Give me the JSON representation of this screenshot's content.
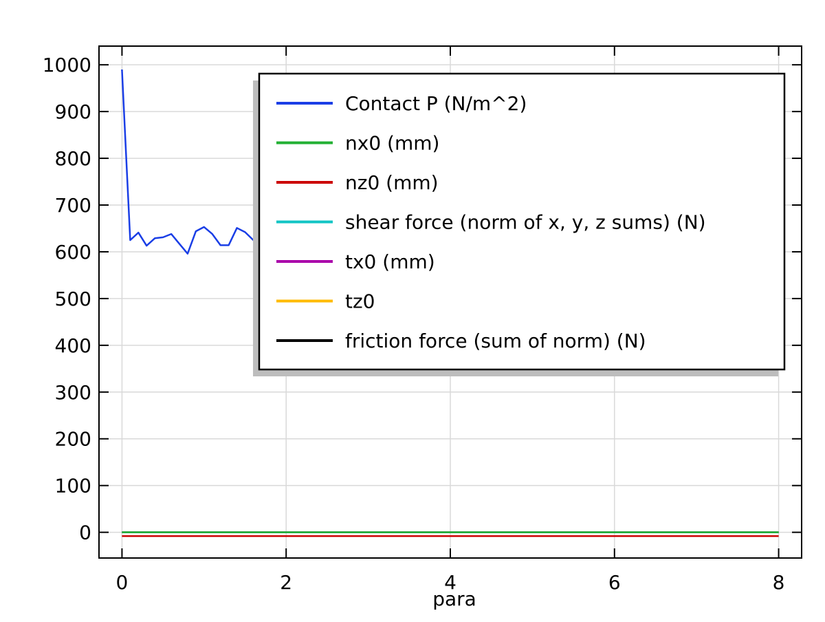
{
  "chart_data": {
    "type": "line",
    "title": "",
    "xlabel": "para",
    "ylabel": "",
    "xlim": [
      -0.28,
      8.28
    ],
    "ylim": [
      -55,
      1040
    ],
    "grid": true,
    "legend_position": "top-right",
    "x_ticks": [
      0,
      2,
      4,
      6,
      8
    ],
    "y_ticks": [
      0,
      100,
      200,
      300,
      400,
      500,
      600,
      700,
      800,
      900,
      1000
    ],
    "series": [
      {
        "name": "Contact P (N/m^2)",
        "color": "#1a3ee6",
        "x": [
          0,
          0.1,
          0.2,
          0.3,
          0.4,
          0.5,
          0.6,
          0.7,
          0.8,
          0.9,
          1.0,
          1.1,
          1.2,
          1.3,
          1.4,
          1.5,
          1.6,
          8.0
        ],
        "y": [
          990,
          625,
          641,
          613,
          629,
          631,
          638,
          617,
          596,
          644,
          653,
          638,
          614,
          614,
          651,
          642,
          625,
          658
        ]
      },
      {
        "name": "nx0 (mm)",
        "color": "#22b033",
        "x": [
          0,
          8
        ],
        "y": [
          0,
          0
        ]
      },
      {
        "name": "nz0 (mm)",
        "color": "#cc0000",
        "x": [
          0,
          8
        ],
        "y": [
          -8,
          -8
        ]
      },
      {
        "name": "shear force (norm of x, y, z sums) (N)",
        "color": "#11c4c4",
        "x": [
          0,
          8
        ],
        "y": [
          0,
          0
        ]
      },
      {
        "name": "tx0 (mm)",
        "color": "#aa00aa",
        "x": [
          0,
          8
        ],
        "y": [
          0,
          0
        ]
      },
      {
        "name": "tz0",
        "color": "#ffbb00",
        "x": [
          0,
          8
        ],
        "y": [
          0,
          0
        ]
      },
      {
        "name": "friction force (sum of norm) (N)",
        "color": "#000000",
        "x": [
          0,
          8
        ],
        "y": [
          0,
          0
        ]
      }
    ]
  }
}
